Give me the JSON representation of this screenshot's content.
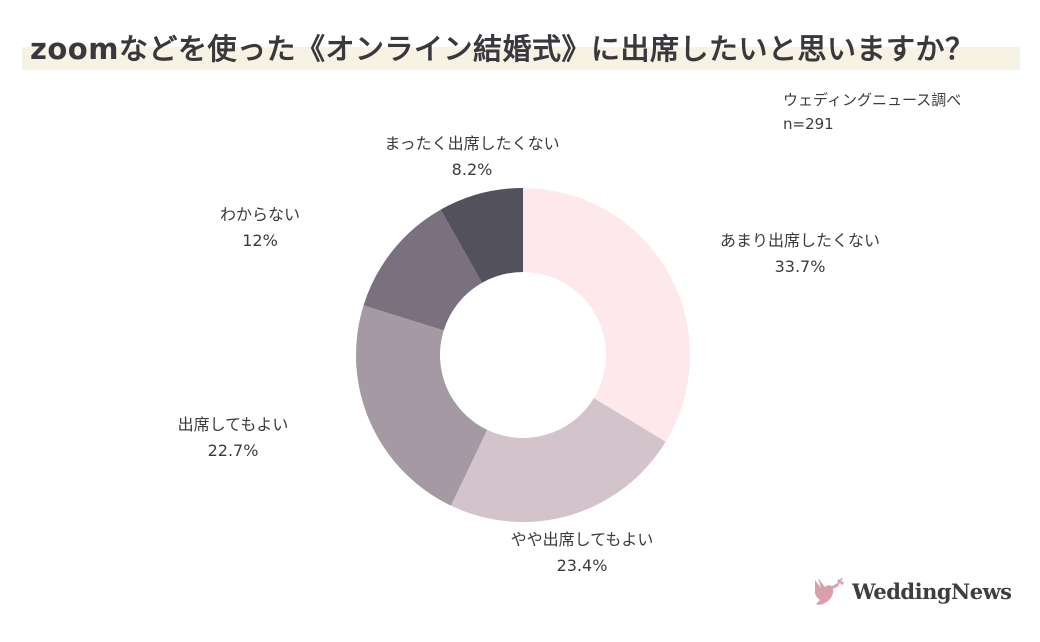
{
  "title": "zoomなどを使った《オンライン結婚式》に出席したいと思いますか？",
  "source": "ウェディングニュース調べ",
  "sample": "n=291",
  "logo": "WeddingNews",
  "chart_data": {
    "type": "pie",
    "donut": true,
    "start": "top, clockwise",
    "slices": [
      {
        "label": "あまり出席したくない",
        "value": 33.7,
        "value_label": "33.7%",
        "color": "#fde9ec"
      },
      {
        "label": "やや出席してもよい",
        "value": 23.4,
        "value_label": "23.4%",
        "color": "#d3c4cb"
      },
      {
        "label": "出席してもよい",
        "value": 22.7,
        "value_label": "22.7%",
        "color": "#a59aa3"
      },
      {
        "label": "わからない",
        "value": 12,
        "value_label": "12%",
        "color": "#7a717e"
      },
      {
        "label": "まったく出席したくない",
        "value": 8.2,
        "value_label": "8.2%",
        "color": "#52515d"
      }
    ]
  }
}
